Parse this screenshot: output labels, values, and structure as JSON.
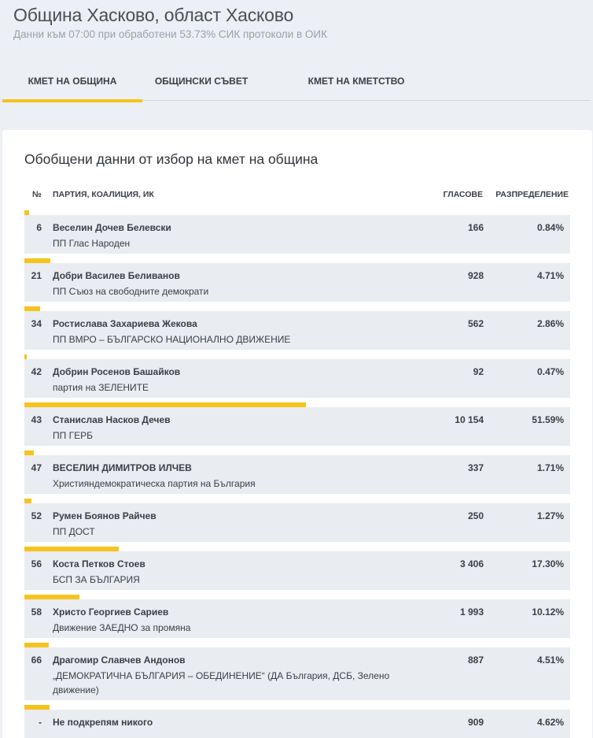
{
  "header": {
    "title": "Община Хасково, област Хасково",
    "subtitle": "Данни към 07:00 при обработени 53.73% СИК протоколи в ОИК"
  },
  "tabs": [
    {
      "label": "КМЕТ НА ОБЩИНА",
      "active": true
    },
    {
      "label": "ОБЩИНСКИ СЪВЕТ",
      "active": false
    },
    {
      "label": "КМЕТ НА КМЕТСТВО",
      "active": false
    }
  ],
  "card": {
    "title": "Обобщени данни от избор на кмет на община",
    "columns": {
      "num": "№",
      "party": "ПАРТИЯ, КОАЛИЦИЯ, ИК",
      "votes": "ГЛАСОВЕ",
      "dist": "РАЗПРЕДЕЛЕНИЕ"
    }
  },
  "accent_color": "#f6c31c",
  "rows": [
    {
      "num": "6",
      "name": "Веселин Дочев Белевски",
      "party": "ПП Глас Народен",
      "votes": "166",
      "dist": "0.84%",
      "share": 0.84
    },
    {
      "num": "21",
      "name": "Добри Василев Беливанов",
      "party": "ПП Съюз на свободните демократи",
      "votes": "928",
      "dist": "4.71%",
      "share": 4.71
    },
    {
      "num": "34",
      "name": "Ростислава Захариева Жекова",
      "party": "ПП ВМРО – БЪЛГАРСКО НАЦИОНАЛНО ДВИЖЕНИЕ",
      "votes": "562",
      "dist": "2.86%",
      "share": 2.86
    },
    {
      "num": "42",
      "name": "Добрин Росенов Башайков",
      "party": "партия на ЗЕЛЕНИТЕ",
      "votes": "92",
      "dist": "0.47%",
      "share": 0.47
    },
    {
      "num": "43",
      "name": "Станислав Насков Дечев",
      "party": "ПП ГЕРБ",
      "votes": "10 154",
      "dist": "51.59%",
      "share": 51.59
    },
    {
      "num": "47",
      "name": "ВЕСЕЛИН ДИМИТРОВ ИЛЧЕВ",
      "party": "Християндемократическа партия на България",
      "votes": "337",
      "dist": "1.71%",
      "share": 1.71
    },
    {
      "num": "52",
      "name": "Румен Боянов Райчев",
      "party": "ПП ДОСТ",
      "votes": "250",
      "dist": "1.27%",
      "share": 1.27
    },
    {
      "num": "56",
      "name": "Коста Петков Стоев",
      "party": "БСП ЗА БЪЛГАРИЯ",
      "votes": "3 406",
      "dist": "17.30%",
      "share": 17.3
    },
    {
      "num": "58",
      "name": "Христо Георгиев Сариев",
      "party": "Движение ЗАЕДНО за промяна",
      "votes": "1 993",
      "dist": "10.12%",
      "share": 10.12
    },
    {
      "num": "66",
      "name": "Драгомир Славчев Андонов",
      "party": "„ДЕМОКРАТИЧНА БЪЛГАРИЯ – ОБЕДИНЕНИЕ“ (ДА България, ДСБ, Зелено движение)",
      "votes": "887",
      "dist": "4.51%",
      "share": 4.51
    },
    {
      "num": "-",
      "name": "Не подкрепям никого",
      "party": "",
      "votes": "909",
      "dist": "4.62%",
      "share": 4.62
    }
  ]
}
